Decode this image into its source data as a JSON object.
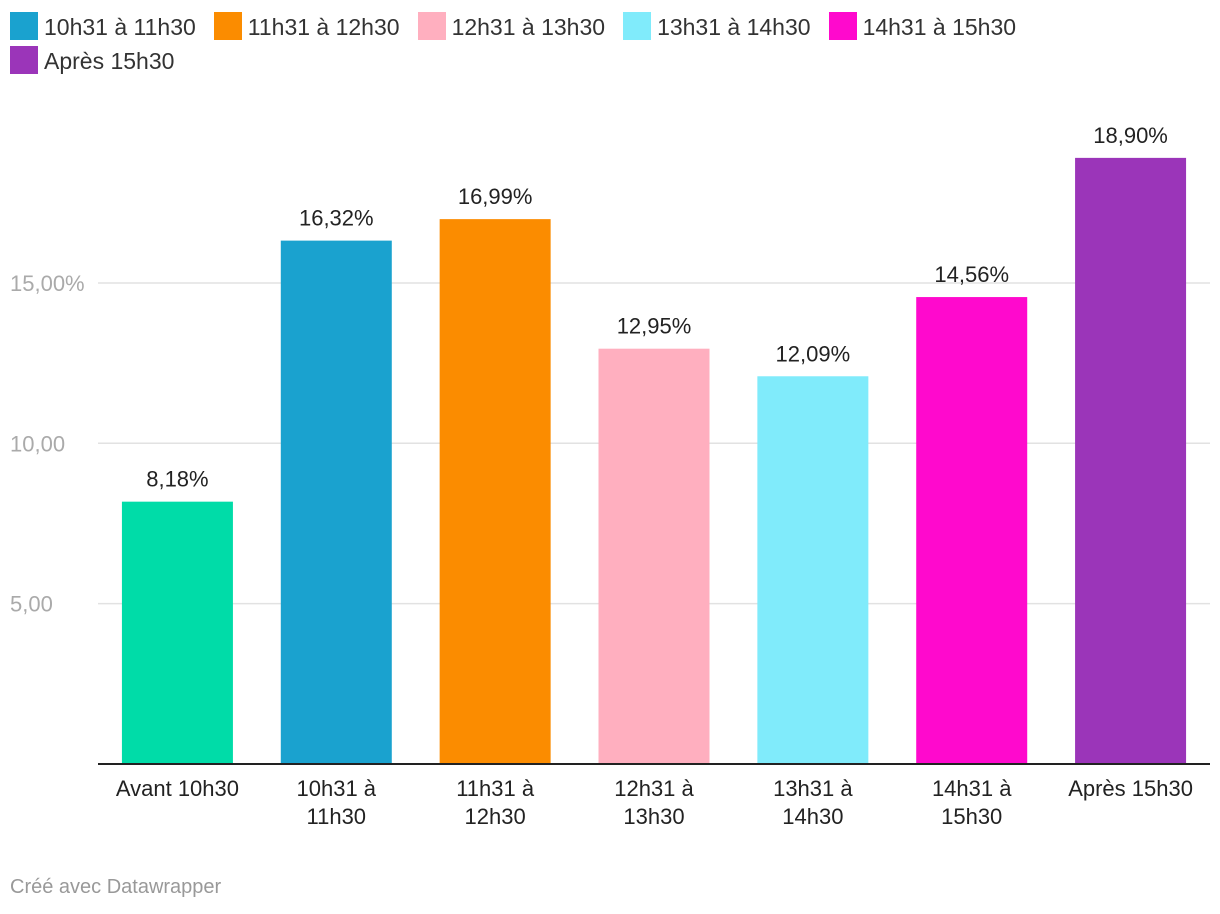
{
  "chart_data": {
    "type": "bar",
    "categories": [
      "Avant 10h30",
      "10h31 à 11h30",
      "11h31 à 12h30",
      "12h31 à 13h30",
      "13h31 à 14h30",
      "14h31 à 15h30",
      "Après 15h30"
    ],
    "values": [
      8.18,
      16.32,
      16.99,
      12.95,
      12.09,
      14.56,
      18.9
    ],
    "value_labels": [
      "8,18%",
      "16,32%",
      "16,99%",
      "12,95%",
      "12,09%",
      "14,56%",
      "18,90%"
    ],
    "colors": [
      "#00dca8",
      "#1aa2cf",
      "#fb8c00",
      "#ffafbf",
      "#80ebfb",
      "#ff09cd",
      "#9b35b9"
    ],
    "yticks": [
      {
        "value": 5,
        "label": "5,00"
      },
      {
        "value": 10,
        "label": "10,00"
      },
      {
        "value": 15,
        "label": "15,00%"
      }
    ],
    "ylim": [
      0,
      19.5
    ],
    "grid": true,
    "legend_position": "top-left",
    "legend": [
      {
        "label": "10h31 à 11h30",
        "color": "#1aa2cf"
      },
      {
        "label": "11h31 à 12h30",
        "color": "#fb8c00"
      },
      {
        "label": "12h31 à 13h30",
        "color": "#ffafbf"
      },
      {
        "label": "13h31 à 14h30",
        "color": "#80ebfb"
      },
      {
        "label": "14h31 à 15h30",
        "color": "#ff09cd"
      },
      {
        "label": "Après 15h30",
        "color": "#9b35b9"
      }
    ]
  },
  "footer": {
    "credit": "Créé avec Datawrapper"
  }
}
